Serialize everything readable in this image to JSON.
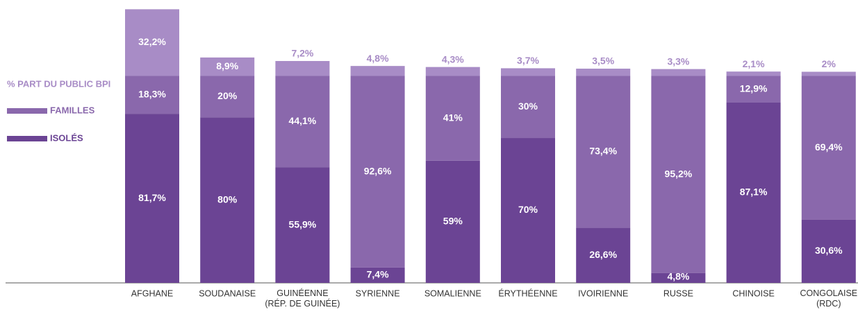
{
  "chart_data": {
    "type": "stacked_bar",
    "categories": [
      "AFGHANE",
      "SOUDANAISE",
      "GUINÉENNE\n(RÉP. DE GUINÉE)",
      "SYRIENNE",
      "SOMALIENNE",
      "ÉRYTHÉENNE",
      "IVOIRIENNE",
      "RUSSE",
      "CHINOISE",
      "CONGOLAISE\n(RDC)"
    ],
    "series": [
      {
        "name": "ISOLÉS",
        "color": "#6b4494",
        "values": [
          81.7,
          80,
          55.9,
          7.4,
          59,
          70,
          26.6,
          4.8,
          87.1,
          30.6
        ],
        "value_labels": [
          "81,7%",
          "80%",
          "55,9%",
          "7,4%",
          "59%",
          "70%",
          "26,6%",
          "4,8%",
          "87,1%",
          "30,6%"
        ]
      },
      {
        "name": "FAMILLES",
        "color": "#8a68ac",
        "values": [
          18.3,
          20,
          44.1,
          92.6,
          41,
          30,
          73.4,
          95.2,
          12.9,
          69.4
        ],
        "value_labels": [
          "18,3%",
          "20%",
          "44,1%",
          "92,6%",
          "41%",
          "30%",
          "73,4%",
          "95,2%",
          "12,9%",
          "69,4%"
        ]
      },
      {
        "name": "% PART DU PUBLIC BPI",
        "color": "#a88cc6",
        "values": [
          32.2,
          8.9,
          7.2,
          4.8,
          4.3,
          3.7,
          3.5,
          3.3,
          2.1,
          2
        ],
        "value_labels": [
          "32,2%",
          "8,9%",
          "7,2%",
          "4,8%",
          "4,3%",
          "3,7%",
          "3,5%",
          "3,3%",
          "2,1%",
          "2%"
        ]
      }
    ],
    "ylim": [
      0,
      135
    ]
  }
}
